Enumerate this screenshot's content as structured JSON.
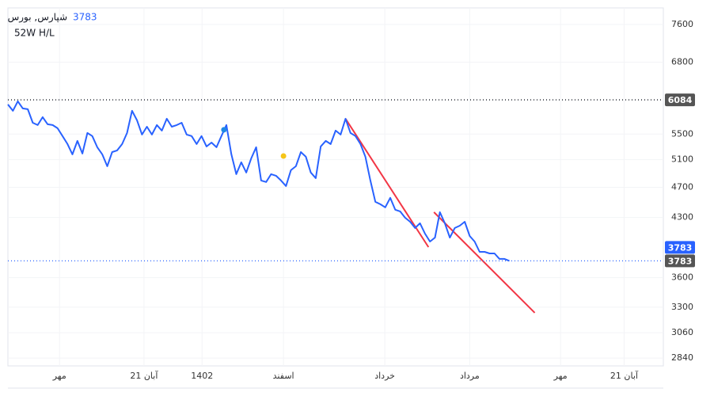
{
  "chart_data": {
    "type": "line",
    "title": "شپارس, بورس",
    "subtitle": "52W H/L",
    "last_price": 3783,
    "log_scale": true,
    "grid": true,
    "ylim": [
      2775,
      7980
    ],
    "yticks": [
      2840,
      3060,
      3300,
      3600,
      4300,
      4700,
      5100,
      5500,
      6800,
      7600
    ],
    "xlim": [
      0,
      132
    ],
    "xticks": [
      {
        "value": 10.4,
        "label": "مهر"
      },
      {
        "value": 27.4,
        "label": "21 آبان"
      },
      {
        "value": 39.1,
        "label": "1402"
      },
      {
        "value": 55.5,
        "label": "اسفند"
      },
      {
        "value": 75.9,
        "label": "خرداد"
      },
      {
        "value": 93,
        "label": "مرداد"
      },
      {
        "value": 111.3,
        "label": "مهر"
      },
      {
        "value": 124.1,
        "label": "21 آبان"
      }
    ],
    "series": [
      {
        "color": "#2962ff",
        "x": [
          0,
          1,
          2,
          3,
          4,
          5,
          6,
          7,
          8,
          9,
          10,
          11,
          12,
          13,
          14,
          15,
          16,
          17,
          18,
          19,
          20,
          21,
          22,
          23,
          24,
          25,
          26,
          27,
          28,
          29,
          30,
          31,
          32,
          33,
          34,
          35,
          36,
          37,
          38,
          39,
          40,
          41,
          42,
          43,
          44,
          45,
          46,
          47,
          48,
          49,
          50,
          51,
          52,
          53,
          54,
          55,
          56,
          57,
          58,
          59,
          60,
          61,
          62,
          63,
          64,
          65,
          66,
          67,
          68,
          69,
          70,
          71,
          72,
          73,
          74,
          75,
          76,
          77,
          78,
          79,
          80,
          81,
          82,
          83,
          84,
          85,
          86,
          87,
          88,
          89,
          90,
          91,
          92,
          93,
          94,
          95,
          96,
          97,
          98,
          99,
          100,
          101
        ],
        "values": [
          6002,
          5890,
          6058,
          5932,
          5918,
          5687,
          5648,
          5781,
          5661,
          5648,
          5595,
          5467,
          5340,
          5180,
          5390,
          5192,
          5517,
          5467,
          5290,
          5180,
          5002,
          5216,
          5241,
          5340,
          5517,
          5890,
          5728,
          5492,
          5621,
          5492,
          5648,
          5557,
          5754,
          5621,
          5648,
          5687,
          5492,
          5467,
          5340,
          5467,
          5303,
          5364,
          5290,
          5467,
          5648,
          5180,
          4886,
          5061,
          4910,
          5120,
          5290,
          4796,
          4774,
          4886,
          4864,
          4796,
          4718,
          4944,
          5002,
          5216,
          5144,
          4910,
          4829,
          5303,
          5390,
          5340,
          5557,
          5492,
          5754,
          5517,
          5467,
          5340,
          5144,
          4796,
          4503,
          4471,
          4430,
          4556,
          4399,
          4378,
          4297,
          4246,
          4168,
          4227,
          4100,
          4005,
          4052,
          4368,
          4227,
          4052,
          4168,
          4197,
          4246,
          4071,
          4005,
          3885,
          3885,
          3867,
          3867,
          3805,
          3805,
          3783
        ]
      }
    ],
    "price_lines": [
      {
        "value": 6084,
        "color": "#131722",
        "label_color": "#555555"
      },
      {
        "value": 3783,
        "color": "#2962ff",
        "label_color": "#555555"
      }
    ],
    "last_price_color": "#2962ff",
    "trendlines": [
      {
        "color": "#f23645",
        "x": [
          68,
          84.7
        ],
        "values": [
          5754,
          3940
        ]
      },
      {
        "color": "#f23645",
        "x": [
          85.8,
          106.1
        ],
        "values": [
          4368,
          3246
        ]
      }
    ],
    "markers": [
      {
        "x": 43.5,
        "value": 5570,
        "color": "#1e88e5"
      },
      {
        "x": 55.5,
        "value": 5155,
        "color": "#f5c518"
      }
    ]
  }
}
